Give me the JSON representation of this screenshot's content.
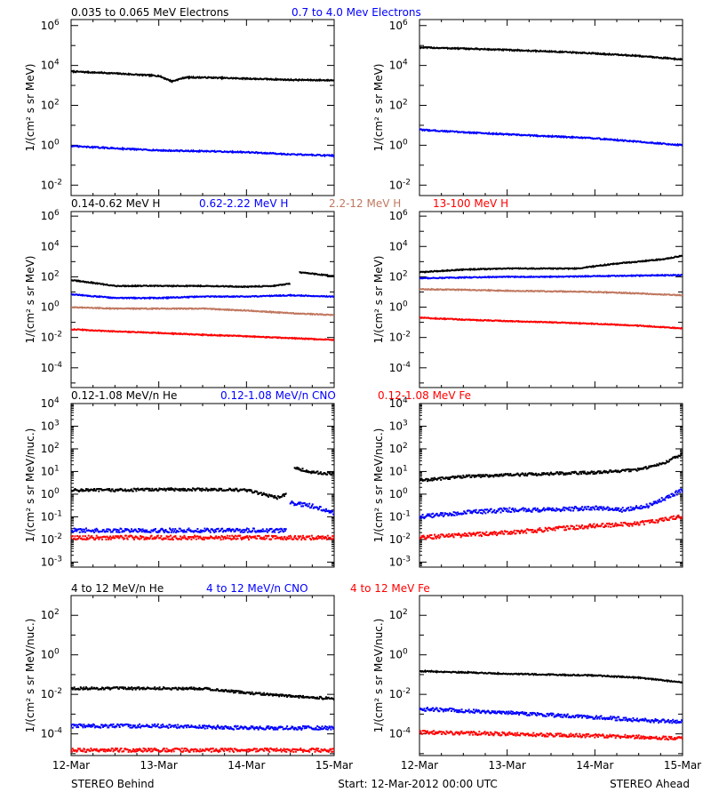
{
  "headers": [
    [
      {
        "text": "0.035 to 0.065 MeV Electrons",
        "color": "#000000"
      },
      {
        "text": "0.7 to 4.0 Mev Electrons",
        "color": "#0000ff"
      }
    ],
    [
      {
        "text": "0.14-0.62 MeV H",
        "color": "#000000"
      },
      {
        "text": "0.62-2.22 MeV H",
        "color": "#0000ff"
      },
      {
        "text": "2.2-12 MeV H",
        "color": "#c07860"
      },
      {
        "text": "13-100 MeV H",
        "color": "#ff0000"
      }
    ],
    [
      {
        "text": "0.12-1.08 MeV/n He",
        "color": "#000000"
      },
      {
        "text": "0.12-1.08 MeV/n CNO",
        "color": "#0000ff"
      },
      {
        "text": "0.12-1.08 MeV Fe",
        "color": "#ff0000"
      }
    ],
    [
      {
        "text": "4 to 12 MeV/n He",
        "color": "#000000"
      },
      {
        "text": "4 to 12 MeV/n CNO",
        "color": "#0000ff"
      },
      {
        "text": "4 to 12 MeV Fe",
        "color": "#ff0000"
      }
    ]
  ],
  "x_ticks": [
    "12-Mar",
    "13-Mar",
    "14-Mar",
    "15-Mar"
  ],
  "footer": {
    "left": "STEREO Behind",
    "center": "Start: 12-Mar-2012 00:00 UTC",
    "right": "STEREO Ahead"
  },
  "chart_data": [
    {
      "type": "line",
      "name": "electrons-behind",
      "yscale": "log",
      "ylim": [
        0.003,
        2000000
      ],
      "ylabel": "1/(cm² s sr MeV)",
      "yticks": [
        {
          "v": 0.01,
          "e": "-2"
        },
        {
          "v": 1,
          "e": "0"
        },
        {
          "v": 100,
          "e": "2"
        },
        {
          "v": 10000,
          "e": "4"
        },
        {
          "v": 1000000,
          "e": "6"
        }
      ],
      "xlim": [
        0,
        3
      ],
      "series": [
        {
          "color": "#000000",
          "style": "line",
          "x": [
            0,
            0.5,
            1.0,
            1.15,
            1.3,
            1.5,
            2.0,
            2.5,
            3.0
          ],
          "y": [
            5000,
            4000,
            3000,
            1600,
            2500,
            2500,
            2200,
            1900,
            1800
          ]
        },
        {
          "color": "#0000ff",
          "style": "line",
          "x": [
            0,
            0.5,
            1.0,
            1.5,
            2.0,
            2.5,
            3.0
          ],
          "y": [
            0.9,
            0.7,
            0.55,
            0.5,
            0.45,
            0.35,
            0.3
          ]
        }
      ]
    },
    {
      "type": "line",
      "name": "electrons-ahead",
      "yscale": "log",
      "ylim": [
        0.003,
        2000000
      ],
      "ylabel": "1/(cm² s sr MeV)",
      "yticks": [
        {
          "v": 0.01,
          "e": "-2"
        },
        {
          "v": 1,
          "e": "0"
        },
        {
          "v": 100,
          "e": "2"
        },
        {
          "v": 10000,
          "e": "4"
        },
        {
          "v": 1000000,
          "e": "6"
        }
      ],
      "xlim": [
        0,
        3
      ],
      "series": [
        {
          "color": "#000000",
          "style": "line",
          "x": [
            0,
            0.5,
            1.0,
            1.5,
            2.0,
            2.5,
            3.0
          ],
          "y": [
            80000,
            70000,
            60000,
            50000,
            40000,
            30000,
            20000
          ]
        },
        {
          "color": "#0000ff",
          "style": "line",
          "x": [
            0,
            0.5,
            1.0,
            1.5,
            2.0,
            2.5,
            3.0
          ],
          "y": [
            6,
            4.5,
            3.5,
            2.8,
            2.2,
            1.5,
            1.0
          ]
        }
      ]
    },
    {
      "type": "line",
      "name": "protons-behind",
      "yscale": "log",
      "ylim": [
        5e-06,
        2000000
      ],
      "ylabel": "1/(cm² s sr MeV)",
      "yticks": [
        {
          "v": 0.0001,
          "e": "-4"
        },
        {
          "v": 0.01,
          "e": "-2"
        },
        {
          "v": 1,
          "e": "0"
        },
        {
          "v": 100,
          "e": "2"
        },
        {
          "v": 10000,
          "e": "4"
        },
        {
          "v": 1000000,
          "e": "6"
        }
      ],
      "xlim": [
        0,
        3
      ],
      "series": [
        {
          "color": "#000000",
          "style": "line",
          "x": [
            0,
            0.25,
            0.5,
            1.0,
            1.5,
            2.0,
            2.3,
            2.5
          ],
          "y": [
            60,
            40,
            25,
            25,
            25,
            22,
            25,
            35
          ]
        },
        {
          "color": "#000000",
          "style": "line",
          "x": [
            2.6,
            2.8,
            3.0
          ],
          "y": [
            200,
            150,
            110
          ]
        },
        {
          "color": "#0000ff",
          "style": "line",
          "x": [
            0,
            0.5,
            1.0,
            1.5,
            2.0,
            2.5,
            3.0
          ],
          "y": [
            7,
            4,
            4,
            5,
            5,
            6,
            5
          ]
        },
        {
          "color": "#c07860",
          "style": "line",
          "x": [
            0,
            0.5,
            1.0,
            1.5,
            2.0,
            2.5,
            3.0
          ],
          "y": [
            1.0,
            0.8,
            0.8,
            0.8,
            0.6,
            0.4,
            0.3
          ]
        },
        {
          "color": "#ff0000",
          "style": "line",
          "x": [
            0,
            0.5,
            1.0,
            1.5,
            2.0,
            2.5,
            3.0
          ],
          "y": [
            0.035,
            0.025,
            0.02,
            0.015,
            0.012,
            0.009,
            0.007
          ]
        }
      ]
    },
    {
      "type": "line",
      "name": "protons-ahead",
      "yscale": "log",
      "ylim": [
        5e-06,
        2000000
      ],
      "ylabel": "1/(cm² s sr MeV)",
      "yticks": [
        {
          "v": 0.0001,
          "e": "-4"
        },
        {
          "v": 0.01,
          "e": "-2"
        },
        {
          "v": 1,
          "e": "0"
        },
        {
          "v": 100,
          "e": "2"
        },
        {
          "v": 10000,
          "e": "4"
        },
        {
          "v": 1000000,
          "e": "6"
        }
      ],
      "xlim": [
        0,
        3
      ],
      "series": [
        {
          "color": "#000000",
          "style": "line",
          "x": [
            0,
            0.5,
            1.0,
            1.5,
            1.8,
            2.0,
            2.3,
            2.5,
            2.8,
            3.0
          ],
          "y": [
            200,
            300,
            350,
            350,
            350,
            500,
            800,
            1000,
            1500,
            2500
          ]
        },
        {
          "color": "#0000ff",
          "style": "line",
          "x": [
            0,
            0.5,
            1.0,
            1.5,
            2.0,
            2.5,
            3.0
          ],
          "y": [
            80,
            90,
            100,
            100,
            110,
            120,
            130
          ]
        },
        {
          "color": "#c07860",
          "style": "line",
          "x": [
            0,
            0.5,
            1.0,
            1.5,
            2.0,
            2.5,
            3.0
          ],
          "y": [
            15,
            14,
            12,
            11,
            10,
            8,
            6
          ]
        },
        {
          "color": "#ff0000",
          "style": "line",
          "x": [
            0,
            0.5,
            1.0,
            1.5,
            2.0,
            2.5,
            3.0
          ],
          "y": [
            0.2,
            0.15,
            0.12,
            0.1,
            0.08,
            0.06,
            0.04
          ]
        }
      ]
    },
    {
      "type": "scatter",
      "name": "heavy-lowE-behind",
      "yscale": "log",
      "ylim": [
        0.0006,
        10000
      ],
      "ylabel": "1/(cm² s sr MeV/nuc.)",
      "yticks": [
        {
          "v": 0.001,
          "e": "-3"
        },
        {
          "v": 0.01,
          "e": "-2"
        },
        {
          "v": 0.1,
          "e": "-1"
        },
        {
          "v": 1,
          "e": "0"
        },
        {
          "v": 10,
          "e": "1"
        },
        {
          "v": 100,
          "e": "2"
        },
        {
          "v": 1000,
          "e": "3"
        },
        {
          "v": 10000,
          "e": "4"
        }
      ],
      "xlim": [
        0,
        3
      ],
      "series": [
        {
          "color": "#000000",
          "style": "dots",
          "x": [
            0,
            0.5,
            1.0,
            1.5,
            2.0,
            2.35,
            2.45
          ],
          "y": [
            1.5,
            1.5,
            1.6,
            1.6,
            1.5,
            0.7,
            1.0
          ]
        },
        {
          "color": "#000000",
          "style": "dots",
          "x": [
            2.55,
            2.75,
            3.0
          ],
          "y": [
            15,
            9,
            8
          ]
        },
        {
          "color": "#0000ff",
          "style": "dots",
          "x": [
            0,
            1.0,
            2.0,
            2.45
          ],
          "y": [
            0.025,
            0.025,
            0.025,
            0.025
          ]
        },
        {
          "color": "#0000ff",
          "style": "dots",
          "x": [
            2.5,
            2.75,
            3.0
          ],
          "y": [
            0.4,
            0.3,
            0.15
          ]
        },
        {
          "color": "#ff0000",
          "style": "dots",
          "x": [
            0,
            3.0
          ],
          "y": [
            0.012,
            0.012
          ]
        }
      ]
    },
    {
      "type": "scatter",
      "name": "heavy-lowE-ahead",
      "yscale": "log",
      "ylim": [
        0.0006,
        10000
      ],
      "ylabel": "1/(cm² s sr MeV/nuc.)",
      "yticks": [
        {
          "v": 0.001,
          "e": "-3"
        },
        {
          "v": 0.01,
          "e": "-2"
        },
        {
          "v": 0.1,
          "e": "-1"
        },
        {
          "v": 1,
          "e": "0"
        },
        {
          "v": 10,
          "e": "1"
        },
        {
          "v": 100,
          "e": "2"
        },
        {
          "v": 1000,
          "e": "3"
        },
        {
          "v": 10000,
          "e": "4"
        }
      ],
      "xlim": [
        0,
        3
      ],
      "series": [
        {
          "color": "#000000",
          "style": "dots",
          "x": [
            0,
            0.5,
            1.0,
            1.5,
            2.0,
            2.5,
            2.8,
            3.0
          ],
          "y": [
            4,
            6,
            7,
            8,
            9,
            12,
            25,
            60
          ]
        },
        {
          "color": "#0000ff",
          "style": "dots",
          "x": [
            0,
            0.5,
            1.0,
            1.5,
            2.0,
            2.3,
            2.6,
            3.0
          ],
          "y": [
            0.1,
            0.15,
            0.2,
            0.2,
            0.25,
            0.2,
            0.3,
            1.5
          ]
        },
        {
          "color": "#ff0000",
          "style": "dots",
          "x": [
            0,
            1.0,
            2.0,
            2.5,
            3.0
          ],
          "y": [
            0.012,
            0.02,
            0.04,
            0.05,
            0.1
          ]
        }
      ]
    },
    {
      "type": "scatter",
      "name": "heavy-highE-behind",
      "yscale": "log",
      "ylim": [
        8e-06,
        1000
      ],
      "ylabel": "1/(cm² s sr MeV/nuc.)",
      "yticks": [
        {
          "v": 0.0001,
          "e": "-4"
        },
        {
          "v": 0.01,
          "e": "-2"
        },
        {
          "v": 1,
          "e": "0"
        },
        {
          "v": 100,
          "e": "2"
        }
      ],
      "xlim": [
        0,
        3
      ],
      "series": [
        {
          "color": "#000000",
          "style": "dots",
          "x": [
            0,
            0.5,
            1.0,
            1.5,
            2.0,
            2.5,
            3.0
          ],
          "y": [
            0.02,
            0.02,
            0.02,
            0.02,
            0.012,
            0.008,
            0.006
          ]
        },
        {
          "color": "#0000ff",
          "style": "dots",
          "x": [
            0,
            1.0,
            2.0,
            3.0
          ],
          "y": [
            0.00025,
            0.00025,
            0.0002,
            0.0002
          ]
        },
        {
          "color": "#ff0000",
          "style": "dots",
          "x": [
            0,
            1.0,
            2.0,
            3.0
          ],
          "y": [
            1.5e-05,
            1.5e-05,
            1.5e-05,
            1.5e-05
          ]
        }
      ]
    },
    {
      "type": "scatter",
      "name": "heavy-highE-ahead",
      "yscale": "log",
      "ylim": [
        8e-06,
        1000
      ],
      "ylabel": "1/(cm² s sr MeV/nuc.)",
      "yticks": [
        {
          "v": 0.0001,
          "e": "-4"
        },
        {
          "v": 0.01,
          "e": "-2"
        },
        {
          "v": 1,
          "e": "0"
        },
        {
          "v": 100,
          "e": "2"
        }
      ],
      "xlim": [
        0,
        3
      ],
      "series": [
        {
          "color": "#000000",
          "style": "line",
          "x": [
            0,
            0.5,
            1.0,
            1.5,
            2.0,
            2.5,
            3.0
          ],
          "y": [
            0.15,
            0.13,
            0.11,
            0.1,
            0.09,
            0.07,
            0.04
          ]
        },
        {
          "color": "#0000ff",
          "style": "dots",
          "x": [
            0,
            0.5,
            1.0,
            1.5,
            2.0,
            2.5,
            3.0
          ],
          "y": [
            0.0018,
            0.0015,
            0.0012,
            0.0009,
            0.0007,
            0.0005,
            0.0004
          ]
        },
        {
          "color": "#ff0000",
          "style": "dots",
          "x": [
            0,
            1.0,
            2.0,
            3.0
          ],
          "y": [
            0.00012,
            0.0001,
            8e-05,
            6e-05
          ]
        }
      ]
    }
  ]
}
